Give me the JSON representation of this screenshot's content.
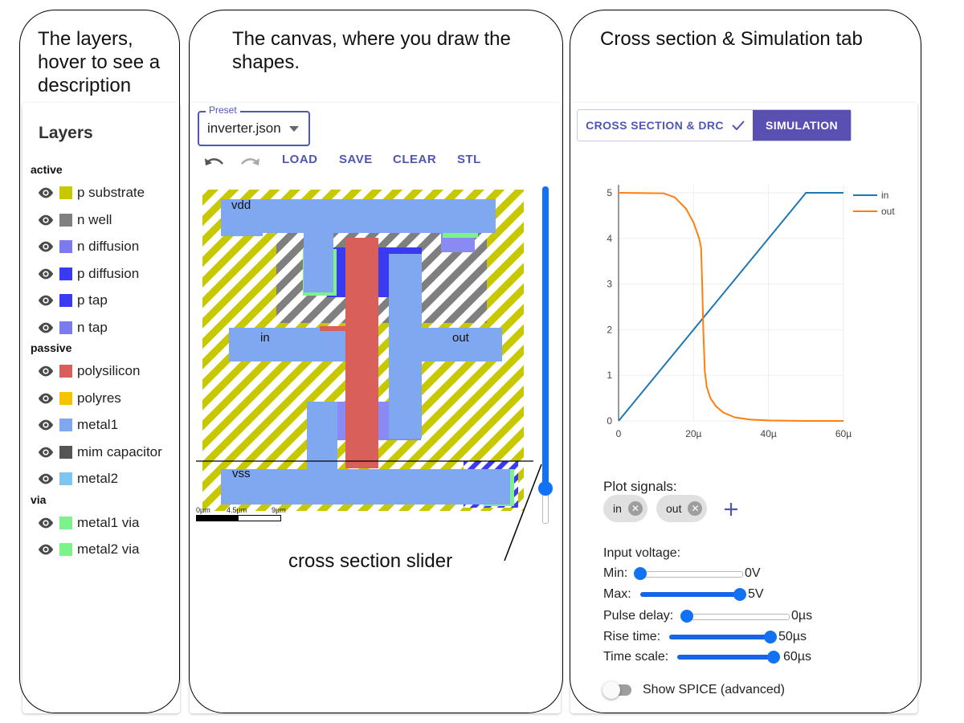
{
  "captions": {
    "layers": "The layers, hover to see a description",
    "canvas": "The canvas, where you draw the shapes.",
    "cross_section": "Cross section & Simulation tab",
    "slider": "cross section slider"
  },
  "layers_panel": {
    "title": "Layers",
    "sections": [
      {
        "name": "active",
        "items": [
          {
            "label": "p substrate",
            "color": "#c8c800"
          },
          {
            "label": "n well",
            "color": "#808080"
          },
          {
            "label": "n diffusion",
            "color": "#7b7bf0"
          },
          {
            "label": "p diffusion",
            "color": "#3a3af0"
          },
          {
            "label": "p tap",
            "color": "#3a3af0"
          },
          {
            "label": "n tap",
            "color": "#7b7bf0"
          }
        ]
      },
      {
        "name": "passive",
        "items": [
          {
            "label": "polysilicon",
            "color": "#d9605a"
          },
          {
            "label": "polyres",
            "color": "#f2c500"
          },
          {
            "label": "metal1",
            "color": "#7fa8f0"
          },
          {
            "label": "mim capacitor",
            "color": "#555555"
          },
          {
            "label": "metal2",
            "color": "#7ec6f2"
          }
        ]
      },
      {
        "name": "via",
        "items": [
          {
            "label": "metal1 via",
            "color": "#7ef28a"
          },
          {
            "label": "metal2 via",
            "color": "#7ef28a"
          }
        ]
      }
    ]
  },
  "canvas_panel": {
    "preset_label": "Preset",
    "preset_value": "inverter.json",
    "toolbar": {
      "load": "LOAD",
      "save": "SAVE",
      "clear": "CLEAR",
      "stl": "STL"
    },
    "labels": {
      "vdd": "vdd",
      "in": "in",
      "out": "out",
      "vss": "vss"
    },
    "scale": {
      "t0": "0µm",
      "t1": "4.5µm",
      "t2": "9µm"
    },
    "cross_section_position": 0.9
  },
  "sim_panel": {
    "tabs": {
      "cross_section": "CROSS SECTION & DRC",
      "simulation": "SIMULATION"
    },
    "active_tab": "simulation",
    "plot_signals_label": "Plot signals:",
    "chips": [
      "in",
      "out"
    ],
    "input_voltage_label": "Input voltage:",
    "sliders": [
      {
        "label": "Min:",
        "value_text": "0V",
        "fraction": 0.0
      },
      {
        "label": "Max:",
        "value_text": "5V",
        "fraction": 1.0
      },
      {
        "label": "Pulse delay:",
        "value_text": "0µs",
        "fraction": 0.0
      },
      {
        "label": "Rise time:",
        "value_text": "50µs",
        "fraction": 1.0
      },
      {
        "label": "Time scale:",
        "value_text": "60µs",
        "fraction": 1.0
      }
    ],
    "show_spice_label": "Show SPICE (advanced)"
  },
  "chart_data": {
    "type": "line",
    "title": "",
    "xlabel": "",
    "ylabel": "",
    "xlim": [
      0,
      60
    ],
    "ylim": [
      0,
      5
    ],
    "x_ticks": [
      "0",
      "20µ",
      "40µ",
      "60µ"
    ],
    "y_ticks": [
      "0",
      "1",
      "2",
      "3",
      "4",
      "5"
    ],
    "legend": "top-right",
    "series": [
      {
        "name": "in",
        "color": "#1f77b4",
        "x": [
          0,
          50,
          60
        ],
        "y": [
          0,
          5,
          5
        ]
      },
      {
        "name": "out",
        "color": "#ff7f0e",
        "x": [
          0,
          12,
          15,
          18,
          20,
          21.5,
          22,
          22.3,
          22.6,
          23,
          23.5,
          24.5,
          26,
          28,
          31,
          35,
          40,
          50,
          60
        ],
        "y": [
          5,
          4.99,
          4.9,
          4.65,
          4.35,
          4.0,
          3.8,
          3.0,
          2.0,
          1.1,
          0.75,
          0.5,
          0.32,
          0.18,
          0.08,
          0.03,
          0.01,
          0.0,
          0.0
        ]
      }
    ]
  }
}
